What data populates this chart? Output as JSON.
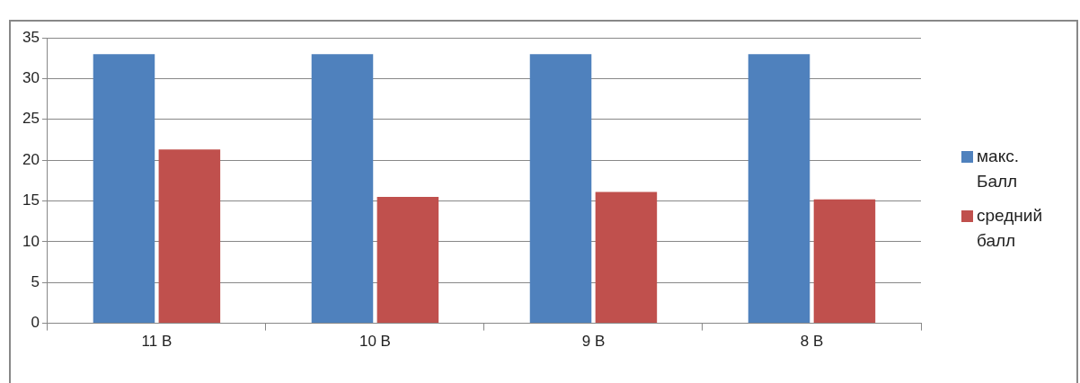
{
  "chart_data": {
    "type": "bar",
    "categories": [
      "11 В",
      "10 В",
      "9 В",
      "8 В"
    ],
    "series": [
      {
        "name": "макс. Балл",
        "color": "#4f81bd",
        "values": [
          33,
          33,
          33,
          33
        ]
      },
      {
        "name": "средний балл",
        "color": "#c0504d",
        "values": [
          21.3,
          15.5,
          16.1,
          15.2
        ]
      }
    ],
    "ylim": [
      0,
      35
    ],
    "yticks": [
      0,
      5,
      10,
      15,
      20,
      25,
      30,
      35
    ],
    "grid": "y",
    "legend": "right"
  }
}
